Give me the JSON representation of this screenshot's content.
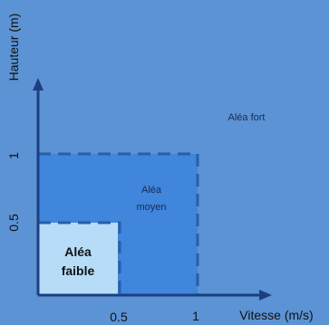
{
  "axes": {
    "y_label": "Hauteur (m)",
    "x_label": "Vitesse (m/s)",
    "x_ticks": [
      "0.5",
      "1"
    ],
    "y_ticks": [
      "1",
      "0.5"
    ]
  },
  "zones": {
    "high": "Aléa fort",
    "medium_line1": "Aléa",
    "medium_line2": "moyen",
    "low_line1": "Aléa",
    "low_line2": "faible"
  },
  "colors": {
    "high": "#5b93d4",
    "medium": "#3f86dc",
    "low": "#b6dcf7",
    "boundary": "#2a5ea8",
    "axis": "#1d3f80",
    "text": "#1c2a50"
  }
}
